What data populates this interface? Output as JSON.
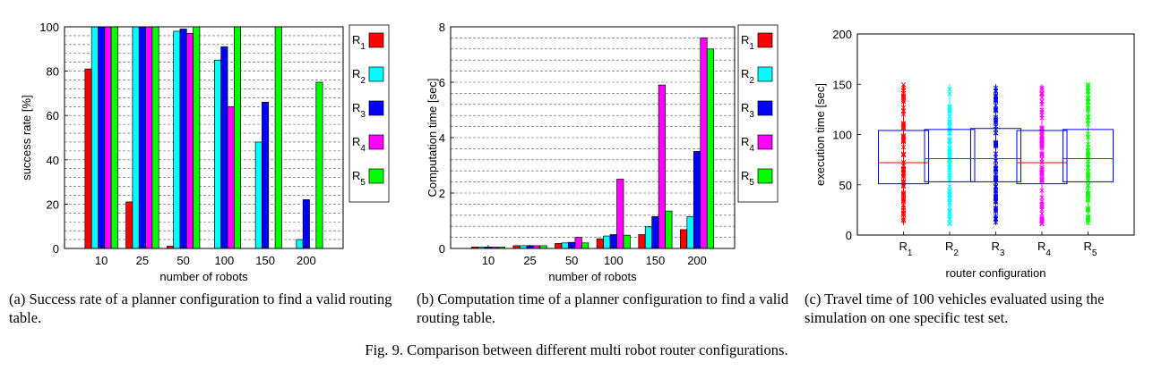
{
  "figure_caption": "Fig. 9.   Comparison between different multi robot router configurations.",
  "subcaptions": [
    "(a) Success rate of a planner configuration to find a valid routing table.",
    "(b) Computation time of a planner configuration to find a valid routing table.",
    "(c) Travel time of 100 vehicles evaluated using the simulation on one specific test set."
  ],
  "colors": {
    "R1": "#ff0000",
    "R2": "#00ffff",
    "R3": "#0000ff",
    "R4": "#ff00ff",
    "R5": "#00ff00",
    "median": "#ff0000",
    "box": "#0000ff"
  },
  "chart_data": [
    {
      "type": "bar",
      "xlabel": "number of robots",
      "ylabel": "success rate [%]",
      "categories": [
        "10",
        "25",
        "50",
        "100",
        "150",
        "200"
      ],
      "ylim": [
        0,
        100
      ],
      "yticks": [
        0,
        20,
        40,
        60,
        80,
        100
      ],
      "grid": "horizontal minor",
      "legend": "right",
      "series": [
        {
          "name": "R1",
          "values": [
            81,
            21,
            1,
            0,
            0,
            0
          ]
        },
        {
          "name": "R2",
          "values": [
            100,
            100,
            98,
            85,
            48,
            4
          ]
        },
        {
          "name": "R3",
          "values": [
            100,
            100,
            99,
            91,
            66,
            22
          ]
        },
        {
          "name": "R4",
          "values": [
            100,
            100,
            97,
            64,
            0,
            0
          ]
        },
        {
          "name": "R5",
          "values": [
            100,
            100,
            100,
            100,
            100,
            75
          ]
        }
      ]
    },
    {
      "type": "bar",
      "xlabel": "number of robots",
      "ylabel": "Computation time [sec]",
      "categories": [
        "10",
        "25",
        "50",
        "100",
        "150",
        "200"
      ],
      "ylim": [
        0,
        8
      ],
      "yticks": [
        0,
        2,
        4,
        6,
        8
      ],
      "grid": "horizontal minor",
      "legend": "right",
      "series": [
        {
          "name": "R1",
          "values": [
            0.05,
            0.1,
            0.18,
            0.35,
            0.5,
            0.68
          ]
        },
        {
          "name": "R2",
          "values": [
            0.05,
            0.1,
            0.2,
            0.45,
            0.78,
            1.15
          ]
        },
        {
          "name": "R3",
          "values": [
            0.05,
            0.1,
            0.22,
            0.5,
            1.15,
            3.5
          ]
        },
        {
          "name": "R4",
          "values": [
            0.05,
            0.1,
            0.4,
            2.5,
            5.9,
            7.6
          ]
        },
        {
          "name": "R5",
          "values": [
            0.05,
            0.1,
            0.2,
            0.48,
            1.35,
            7.2
          ]
        }
      ]
    },
    {
      "type": "box",
      "xlabel": "router configuration",
      "ylabel": "execution time [sec]",
      "categories": [
        "R1",
        "R2",
        "R3",
        "R4",
        "R5"
      ],
      "ylim": [
        0,
        200
      ],
      "yticks": [
        0,
        50,
        100,
        150,
        200
      ],
      "boxes": [
        {
          "name": "R1",
          "q1": 51,
          "median": 72,
          "q3": 104,
          "min": 10,
          "max": 150
        },
        {
          "name": "R2",
          "q1": 53,
          "median": 76,
          "q3": 105,
          "min": 10,
          "max": 150
        },
        {
          "name": "R3",
          "q1": 53,
          "median": 76,
          "q3": 106,
          "min": 10,
          "max": 150
        },
        {
          "name": "R4",
          "q1": 51,
          "median": 72,
          "q3": 104,
          "min": 10,
          "max": 150
        },
        {
          "name": "R5",
          "q1": 53,
          "median": 76,
          "q3": 105,
          "min": 10,
          "max": 150
        }
      ]
    }
  ]
}
